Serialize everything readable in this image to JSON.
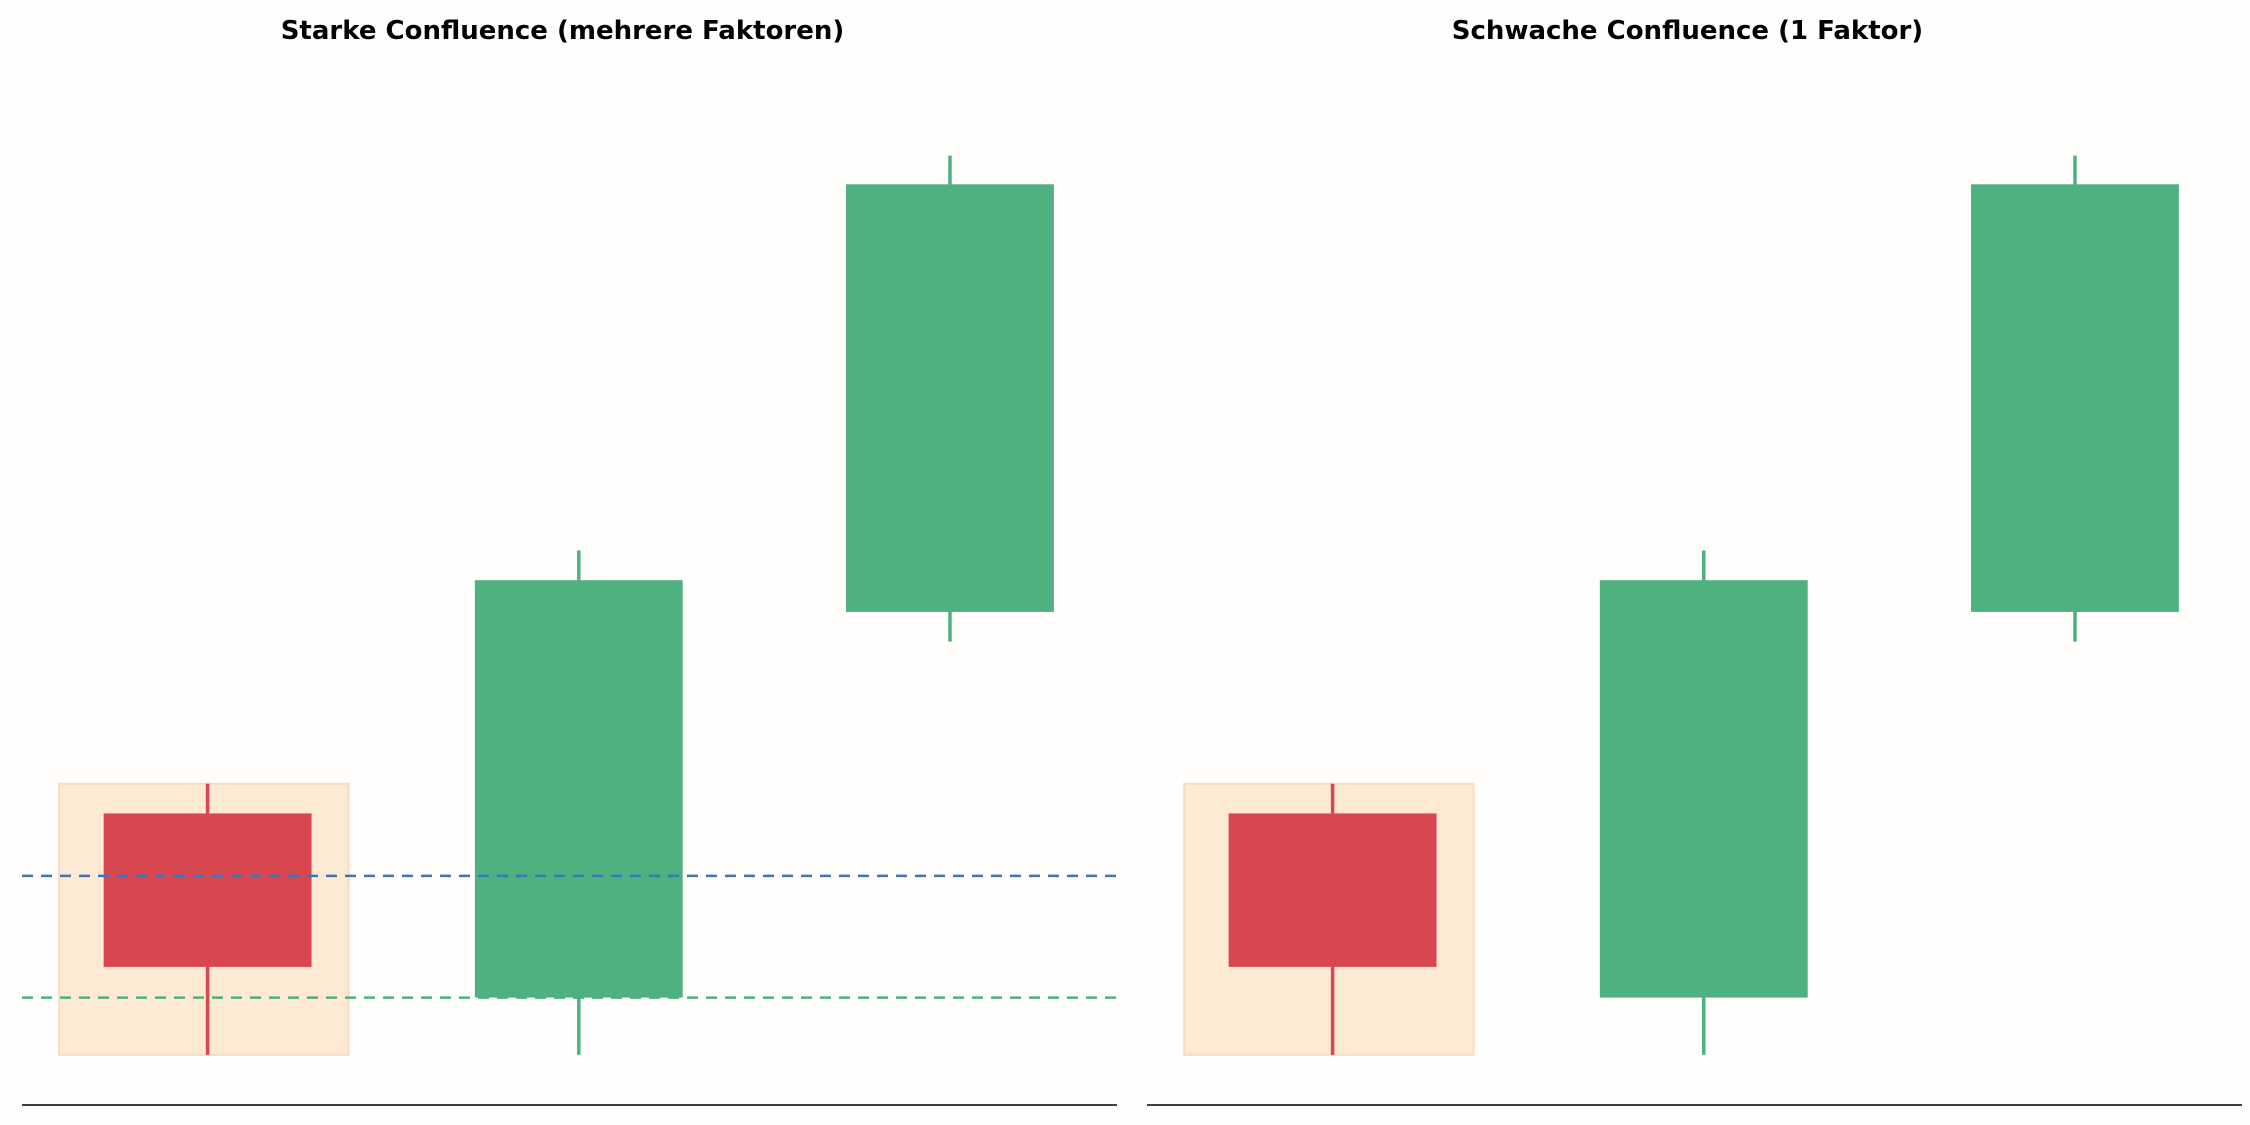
{
  "colors": {
    "background": "#fffefc",
    "bullish": "#4fb080",
    "bearish": "#d84650",
    "zone_fill": "#fde9d4",
    "zone_edge": "#f9dcbd",
    "level_blue": "#3a76b8",
    "level_green": "#4fb080",
    "axis": "#000000"
  },
  "chart_data": [
    {
      "type": "candlestick",
      "title": "Starke Confluence (mehrere Faktoren)",
      "xlabel": "",
      "ylabel": "",
      "xlim": [
        -0.5,
        2.45
      ],
      "ylim": [
        0,
        100
      ],
      "grid": false,
      "candles": [
        {
          "x": 0,
          "open": 28.5,
          "close": 13.5,
          "high": 31.4,
          "low": 4.9
        },
        {
          "x": 1,
          "open": 10.5,
          "close": 51.3,
          "high": 54.2,
          "low": 4.9
        },
        {
          "x": 2,
          "open": 48.2,
          "close": 90.0,
          "high": 92.8,
          "low": 45.3
        }
      ],
      "zones": [
        {
          "x0": -0.4,
          "x1": 0.38,
          "y0": 4.9,
          "y1": 31.4
        }
      ],
      "hlines": [
        {
          "y": 22.4,
          "style": "dashed",
          "color": "level_blue"
        },
        {
          "y": 10.5,
          "style": "dashed",
          "color": "level_green"
        }
      ]
    },
    {
      "type": "candlestick",
      "title": "Schwache Confluence (1 Faktor)",
      "xlabel": "",
      "ylabel": "",
      "xlim": [
        -0.5,
        2.45
      ],
      "ylim": [
        0,
        100
      ],
      "grid": false,
      "candles": [
        {
          "x": 0,
          "open": 28.5,
          "close": 13.5,
          "high": 31.4,
          "low": 4.9
        },
        {
          "x": 1,
          "open": 10.5,
          "close": 51.3,
          "high": 54.2,
          "low": 4.9
        },
        {
          "x": 2,
          "open": 48.2,
          "close": 90.0,
          "high": 92.8,
          "low": 45.3
        }
      ],
      "zones": [
        {
          "x0": -0.4,
          "x1": 0.38,
          "y0": 4.9,
          "y1": 31.4
        }
      ],
      "hlines": []
    }
  ]
}
